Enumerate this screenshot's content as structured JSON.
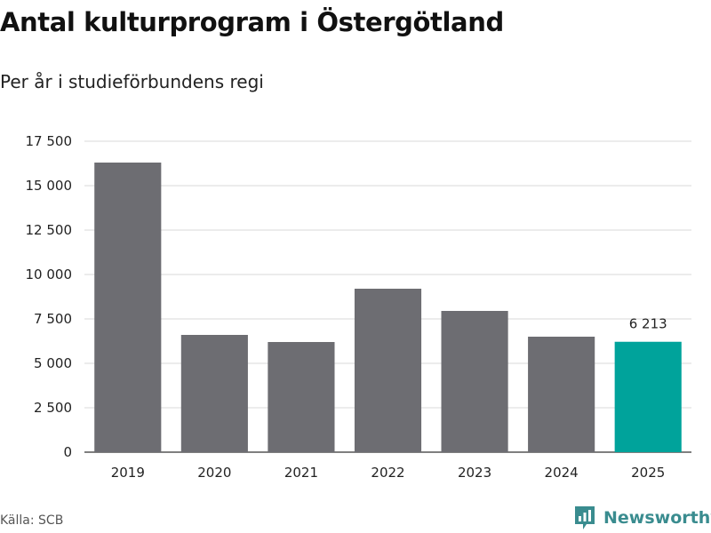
{
  "title": "Antal kulturprogram i Östergötland",
  "subtitle": "Per år i studieförbundens regi",
  "source": "Källa: SCB",
  "brand": {
    "name": "Newsworthy",
    "icon": "newsworthy-logo-icon"
  },
  "colors": {
    "bar": "#6d6d72",
    "highlight": "#00a39b",
    "grid": "#d9d9d9",
    "axis": "#333333",
    "brand": "#3a8c8f"
  },
  "chart_data": {
    "type": "bar",
    "title": "Antal kulturprogram i Östergötland",
    "subtitle": "Per år i studieförbundens regi",
    "xlabel": "",
    "ylabel": "",
    "categories": [
      "2019",
      "2020",
      "2021",
      "2022",
      "2023",
      "2024",
      "2025"
    ],
    "values": [
      16300,
      6600,
      6200,
      9200,
      7950,
      6500,
      6213
    ],
    "highlight_index": 6,
    "data_labels": [
      {
        "index": 6,
        "text": "6 213"
      }
    ],
    "ylim": [
      0,
      17500
    ],
    "yticks": [
      0,
      2500,
      5000,
      7500,
      10000,
      12500,
      15000,
      17500
    ],
    "ytick_labels": [
      "0",
      "2 500",
      "5 000",
      "7 500",
      "10 000",
      "12 500",
      "15 000",
      "17 500"
    ],
    "grid": true,
    "legend": "none"
  }
}
